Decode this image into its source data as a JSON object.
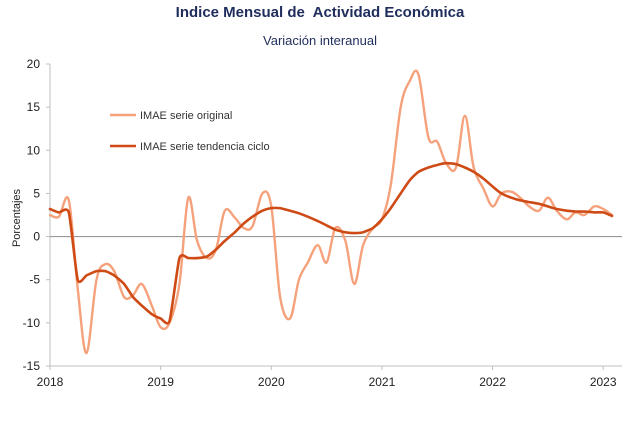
{
  "chart_data": {
    "type": "line",
    "title": "Indice Mensual de  Actividad Económica",
    "subtitle": "Variación interanual",
    "ylabel": "Porcentajes",
    "xlabel": "",
    "ylim": [
      -15,
      20
    ],
    "yticks": [
      20,
      15,
      10,
      5,
      0,
      -5,
      -10,
      -15
    ],
    "xticks": [
      "2018",
      "2019",
      "2020",
      "2021",
      "2022",
      "2023"
    ],
    "xlim": [
      2018.0,
      2023.17
    ],
    "grid": false,
    "legend_position": "top-left",
    "colors": {
      "original": "#f5a27c",
      "trend": "#cf4b16",
      "zero_line": "#999999",
      "title": "#1f2d5c"
    },
    "series": [
      {
        "name": "IMAE serie original",
        "x": [
          2018.0,
          2018.08,
          2018.17,
          2018.25,
          2018.33,
          2018.42,
          2018.5,
          2018.58,
          2018.67,
          2018.75,
          2018.83,
          2018.92,
          2019.0,
          2019.08,
          2019.17,
          2019.25,
          2019.33,
          2019.42,
          2019.5,
          2019.58,
          2019.67,
          2019.75,
          2019.83,
          2019.92,
          2020.0,
          2020.08,
          2020.17,
          2020.25,
          2020.33,
          2020.42,
          2020.5,
          2020.58,
          2020.67,
          2020.75,
          2020.83,
          2020.92,
          2021.0,
          2021.08,
          2021.17,
          2021.25,
          2021.33,
          2021.42,
          2021.5,
          2021.58,
          2021.67,
          2021.75,
          2021.83,
          2021.92,
          2022.0,
          2022.08,
          2022.17,
          2022.25,
          2022.33,
          2022.42,
          2022.5,
          2022.58,
          2022.67,
          2022.75,
          2022.83,
          2022.92,
          2023.0,
          2023.08
        ],
        "values": [
          2.5,
          2.3,
          4.2,
          -6.0,
          -13.5,
          -5.0,
          -3.2,
          -4.0,
          -7.0,
          -6.8,
          -5.5,
          -8.0,
          -10.5,
          -10.0,
          -5.5,
          4.5,
          -0.5,
          -2.5,
          -1.5,
          3.0,
          2.2,
          1.0,
          1.2,
          5.0,
          3.5,
          -7.0,
          -9.5,
          -5.0,
          -3.0,
          -1.0,
          -3.0,
          1.0,
          -0.5,
          -5.5,
          -1.0,
          1.0,
          2.0,
          6.0,
          15.0,
          18.0,
          18.8,
          11.5,
          11.0,
          8.5,
          8.0,
          14.0,
          8.0,
          5.5,
          3.5,
          5.0,
          5.2,
          4.5,
          3.5,
          3.0,
          4.5,
          3.0,
          2.0,
          2.8,
          2.5,
          3.5,
          3.2,
          2.5
        ]
      },
      {
        "name": "IMAE serie  tendencia ciclo",
        "x": [
          2018.0,
          2018.08,
          2018.17,
          2018.25,
          2018.33,
          2018.42,
          2018.5,
          2018.58,
          2018.67,
          2018.75,
          2018.83,
          2018.92,
          2019.0,
          2019.08,
          2019.17,
          2019.25,
          2019.33,
          2019.42,
          2019.5,
          2019.58,
          2019.67,
          2019.75,
          2019.83,
          2019.92,
          2020.0,
          2020.08,
          2020.17,
          2020.25,
          2020.33,
          2020.42,
          2020.5,
          2020.58,
          2020.67,
          2020.75,
          2020.83,
          2020.92,
          2021.0,
          2021.08,
          2021.17,
          2021.25,
          2021.33,
          2021.42,
          2021.5,
          2021.58,
          2021.67,
          2021.75,
          2021.83,
          2021.92,
          2022.0,
          2022.08,
          2022.17,
          2022.25,
          2022.33,
          2022.42,
          2022.5,
          2022.58,
          2022.67,
          2022.75,
          2022.83,
          2022.92,
          2023.0,
          2023.08
        ],
        "values": [
          3.2,
          2.8,
          2.8,
          -5.0,
          -4.5,
          -4.0,
          -4.0,
          -4.5,
          -5.5,
          -7.0,
          -8.0,
          -9.0,
          -9.5,
          -9.8,
          -2.5,
          -2.5,
          -2.5,
          -2.3,
          -1.5,
          -0.5,
          0.5,
          1.5,
          2.3,
          3.0,
          3.3,
          3.3,
          3.0,
          2.7,
          2.3,
          1.8,
          1.3,
          0.8,
          0.5,
          0.4,
          0.5,
          1.0,
          2.0,
          3.3,
          5.0,
          6.5,
          7.5,
          8.0,
          8.3,
          8.5,
          8.4,
          8.0,
          7.5,
          6.7,
          5.8,
          5.0,
          4.5,
          4.2,
          4.0,
          3.8,
          3.5,
          3.2,
          3.0,
          2.9,
          2.9,
          2.8,
          2.8,
          2.4
        ]
      }
    ]
  }
}
